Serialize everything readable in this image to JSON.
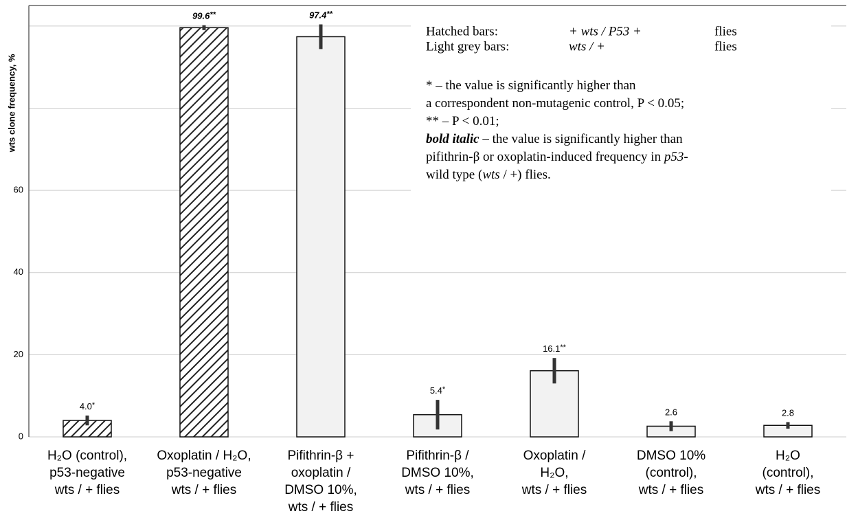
{
  "chart_data": {
    "type": "bar",
    "y_label": "wts clone frequency, %",
    "categories": [
      "H₂O (control),\np53-negative\nwts / + flies",
      "Oxoplatin / H₂O,\np53-negative\nwts / + flies",
      "Pifithrin-β +\noxoplatin /\nDMSO 10%,\nwts / + flies",
      "Pifithrin-β /\nDMSO 10%,\nwts / + flies",
      "Oxoplatin /\nH₂O,\nwts / + flies",
      "DMSO 10%\n(control),\nwts / + flies",
      "H₂O\n(control),\nwts / + flies"
    ],
    "values": [
      4.0,
      99.6,
      97.4,
      5.4,
      16.1,
      2.6,
      2.8
    ],
    "value_labels": [
      "4.0",
      "99.6",
      "97.4",
      "5.4",
      "16.1",
      "2.6",
      "2.8"
    ],
    "errors": [
      1.2,
      0.6,
      3.0,
      3.6,
      3.1,
      1.2,
      0.8
    ],
    "significance": [
      "*",
      "**",
      "**",
      "*",
      "**",
      null,
      null
    ],
    "bold_italic_labels": [
      false,
      true,
      true,
      false,
      false,
      false,
      false
    ],
    "hatched": [
      true,
      true,
      false,
      false,
      false,
      false,
      false
    ],
    "color": "#f2f2f2",
    "ylim": [
      0,
      105
    ],
    "yticks": [
      0,
      20,
      40,
      60
    ],
    "unlabeled_gridlines": [
      80,
      100
    ],
    "grid": true,
    "legend": {
      "rows": [
        [
          "Hatched bars:",
          "+ wts / P53 +",
          "flies"
        ],
        [
          "Light grey bars:",
          "wts / +",
          "flies"
        ]
      ],
      "notes": [
        [
          {
            "text": "* – the value is significantly higher than"
          }
        ],
        [
          {
            "text": "a correspondent non-mutagenic control, P < 0.05;"
          }
        ],
        [
          {
            "text": "** – P < 0.01;"
          }
        ],
        [
          {
            "text": "bold italic",
            "style": "bold-italic"
          },
          {
            "text": " – the value is significantly higher than"
          }
        ],
        [
          {
            "text": "pifithrin-β or oxoplatin-induced frequency in "
          },
          {
            "text": "p53",
            "style": "italic"
          },
          {
            "text": "-"
          }
        ],
        [
          {
            "text": "wild type ("
          },
          {
            "text": "wts",
            "style": "italic"
          },
          {
            "text": " / +) flies."
          }
        ]
      ]
    }
  }
}
